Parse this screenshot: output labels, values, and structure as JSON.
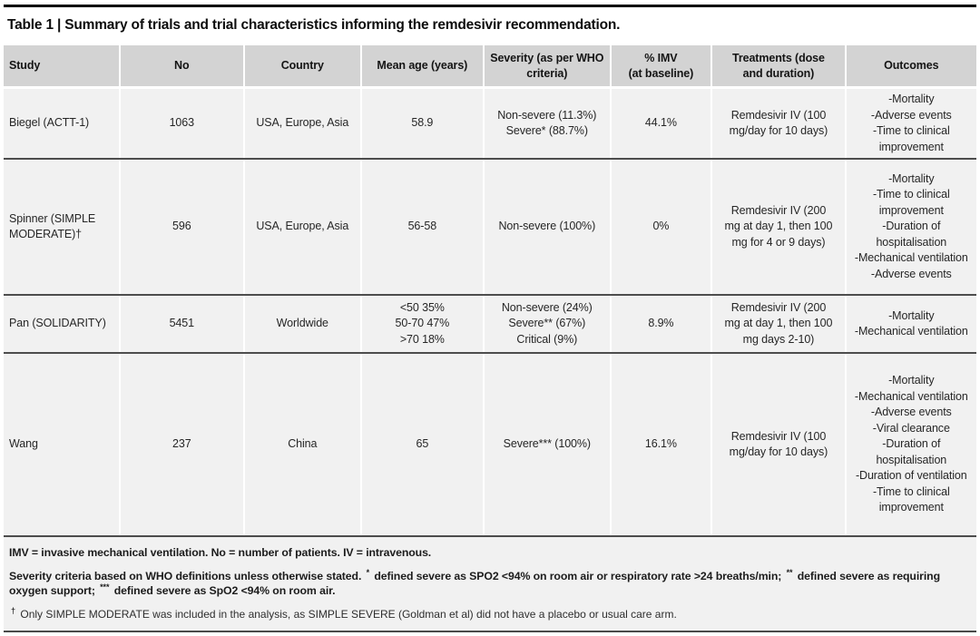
{
  "title": "Table 1 | Summary of trials and trial characteristics informing the remdesivir recommendation.",
  "table": {
    "headers": [
      "Study",
      "No",
      "Country",
      "Mean age (years)",
      "Severity (as per WHO\ncriteria)",
      "% IMV\n(at baseline)",
      "Treatments (dose\nand duration)",
      "Outcomes"
    ],
    "rows": [
      {
        "study": "Biegel (ACTT-1)",
        "no": "1063",
        "country": "USA, Europe, Asia",
        "mean_age": "58.9",
        "severity": "Non-severe (11.3%)\nSevere* (88.7%)",
        "imv": "44.1%",
        "treatments": "Remdesivir IV (100 mg/day for 10 days)",
        "outcomes": "-Mortality\n-Adverse events\n-Time to clinical improvement"
      },
      {
        "study": "Spinner (SIMPLE MODERATE)†",
        "no": "596",
        "country": "USA, Europe, Asia",
        "mean_age": "56-58",
        "severity": "Non-severe (100%)",
        "imv": "0%",
        "treatments": "Remdesivir IV (200 mg at day 1, then 100 mg for 4 or 9 days)",
        "outcomes": "-Mortality\n-Time to clinical improvement\n-Duration of hospitalisation\n-Mechanical ventilation\n-Adverse events"
      },
      {
        "study": "Pan (SOLIDARITY)",
        "no": "5451",
        "country": "Worldwide",
        "mean_age": "<50 35%\n50-70 47%\n>70 18%",
        "severity": "Non-severe (24%)\nSevere** (67%)\nCritical (9%)",
        "imv": "8.9%",
        "treatments": "Remdesivir IV (200 mg at day 1, then 100 mg days 2-10)",
        "outcomes": "-Mortality\n-Mechanical ventilation"
      },
      {
        "study": "Wang",
        "no": "237",
        "country": "China",
        "mean_age": "65",
        "severity": "Severe*** (100%)",
        "imv": "16.1%",
        "treatments": "Remdesivir IV (100 mg/day for 10 days)",
        "outcomes": "-Mortality\n-Mechanical ventilation\n-Adverse events\n-Viral clearance\n-Duration of hospitalisation\n-Duration of ventilation\n-Time to clinical improvement"
      }
    ]
  },
  "footnotes": {
    "abbreviations": "IMV = invasive mechanical ventilation. No = number of patients. IV = intravenous.",
    "severity": {
      "p1": "Severity criteria based on WHO definitions unless otherwise stated.",
      "s1": "*",
      "p2": "defined severe as SPO2 <94% on room air or respiratory rate >24 breaths/min;",
      "s2": "**",
      "p3": "defined severe as requiring oxygen support;",
      "s3": "***",
      "p4": "defined severe as SpO2 <94% on room air."
    },
    "dagger": {
      "mark": "†",
      "text": "Only SIMPLE MODERATE was included in the analysis, as SIMPLE SEVERE (Goldman et al) did not have a placebo or usual care arm."
    }
  },
  "colors": {
    "header_bg": "#d3d3d3",
    "body_bg": "#f1f1f1",
    "rule": "#000000",
    "row_separator": "#4d4d4d"
  }
}
